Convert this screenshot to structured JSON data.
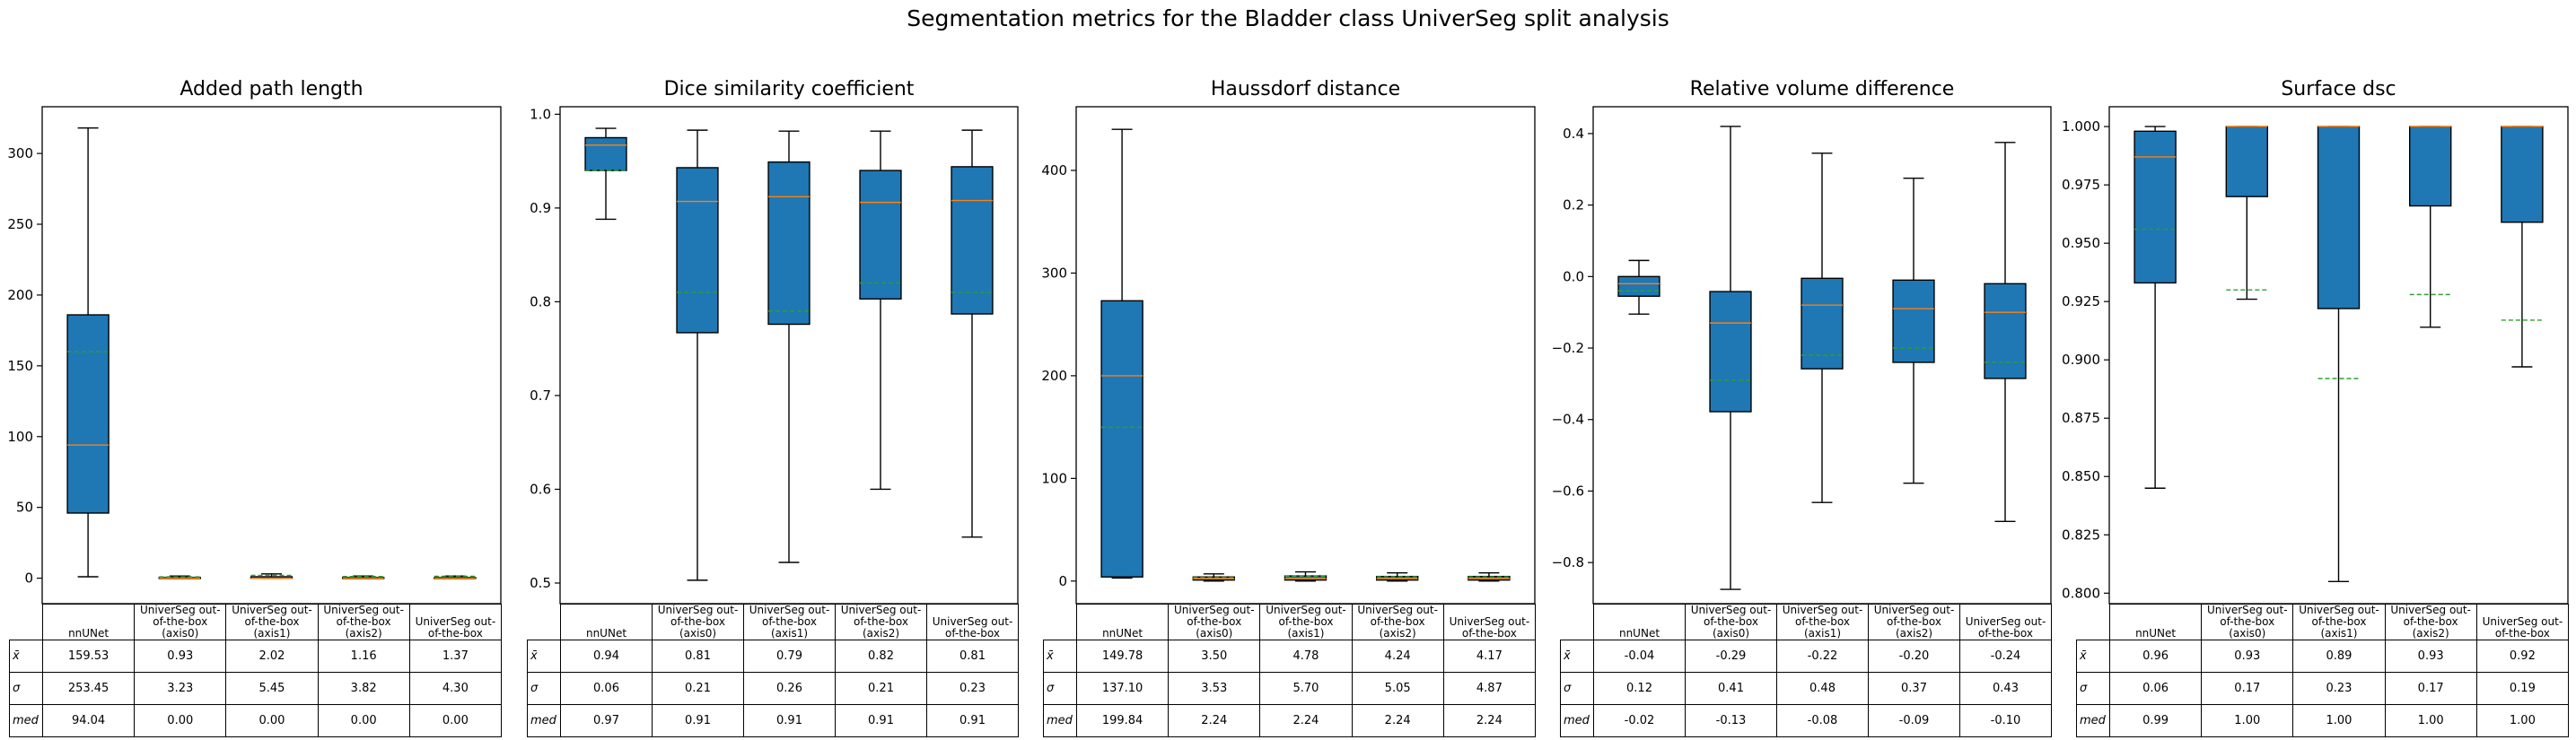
{
  "title": "Segmentation metrics for the Bladder class UniverSeg split analysis",
  "table_row_labels": [
    "x̄",
    "σ",
    "med"
  ],
  "colors": {
    "box": "#1f77b4",
    "median": "#ff7f0e",
    "mean": "#2ca02c",
    "edge": "#000000"
  },
  "chart_data": [
    {
      "type": "box",
      "title": "Added path length",
      "categories": [
        "nnUNet",
        "UniverSeg out-of-the-box (axis0)",
        "UniverSeg out-of-the-box (axis1)",
        "UniverSeg out-of-the-box (axis2)",
        "UniverSeg out-of-the-box"
      ],
      "ylim": [
        -18,
        333
      ],
      "yticks": [
        0,
        50,
        100,
        150,
        200,
        250,
        300
      ],
      "ytick_labels": [
        "0",
        "50",
        "100",
        "150",
        "200",
        "250",
        "300"
      ],
      "boxes": [
        {
          "whislo": 1,
          "q1": 46,
          "med": 94,
          "q3": 186,
          "whishi": 318,
          "mean": 160
        },
        {
          "whislo": 0,
          "q1": 0,
          "med": 0,
          "q3": 0.5,
          "whishi": 1.5,
          "mean": 0.93
        },
        {
          "whislo": 0,
          "q1": 0,
          "med": 0,
          "q3": 1,
          "whishi": 3,
          "mean": 2.02
        },
        {
          "whislo": 0,
          "q1": 0,
          "med": 0,
          "q3": 0.5,
          "whishi": 1.5,
          "mean": 1.16
        },
        {
          "whislo": 0,
          "q1": 0,
          "med": 0,
          "q3": 0.5,
          "whishi": 1.5,
          "mean": 1.37
        }
      ],
      "table": {
        "columns": [
          "nnUNet",
          "UniverSeg out-\nof-the-box\n(axis0)",
          "UniverSeg out-\nof-the-box\n(axis1)",
          "UniverSeg out-\nof-the-box\n(axis2)",
          "UniverSeg out-\nof-the-box"
        ],
        "rows": [
          [
            "159.53",
            "0.93",
            "2.02",
            "1.16",
            "1.37"
          ],
          [
            "253.45",
            "3.23",
            "5.45",
            "3.82",
            "4.30"
          ],
          [
            "94.04",
            "0.00",
            "0.00",
            "0.00",
            "0.00"
          ]
        ]
      }
    },
    {
      "type": "box",
      "title": "Dice similarity coefficient",
      "categories": [
        "nnUNet",
        "UniverSeg out-of-the-box (axis0)",
        "UniverSeg out-of-the-box (axis1)",
        "UniverSeg out-of-the-box (axis2)",
        "UniverSeg out-of-the-box"
      ],
      "ylim": [
        0.478,
        1.008
      ],
      "yticks": [
        0.5,
        0.6,
        0.7,
        0.8,
        0.9,
        1.0
      ],
      "ytick_labels": [
        "0.5",
        "0.6",
        "0.7",
        "0.8",
        "0.9",
        "1.0"
      ],
      "boxes": [
        {
          "whislo": 0.888,
          "q1": 0.94,
          "med": 0.967,
          "q3": 0.975,
          "whishi": 0.985,
          "mean": 0.94
        },
        {
          "whislo": 0.503,
          "q1": 0.767,
          "med": 0.907,
          "q3": 0.943,
          "whishi": 0.983,
          "mean": 0.81
        },
        {
          "whislo": 0.522,
          "q1": 0.776,
          "med": 0.912,
          "q3": 0.949,
          "whishi": 0.982,
          "mean": 0.79
        },
        {
          "whislo": 0.6,
          "q1": 0.803,
          "med": 0.906,
          "q3": 0.94,
          "whishi": 0.982,
          "mean": 0.82
        },
        {
          "whislo": 0.549,
          "q1": 0.787,
          "med": 0.908,
          "q3": 0.944,
          "whishi": 0.983,
          "mean": 0.81
        }
      ],
      "table": {
        "columns": [
          "nnUNet",
          "UniverSeg out-\nof-the-box\n(axis0)",
          "UniverSeg out-\nof-the-box\n(axis1)",
          "UniverSeg out-\nof-the-box\n(axis2)",
          "UniverSeg out-\nof-the-box"
        ],
        "rows": [
          [
            "0.94",
            "0.81",
            "0.79",
            "0.82",
            "0.81"
          ],
          [
            "0.06",
            "0.21",
            "0.26",
            "0.21",
            "0.23"
          ],
          [
            "0.97",
            "0.91",
            "0.91",
            "0.91",
            "0.91"
          ]
        ]
      }
    },
    {
      "type": "box",
      "title": "Haussdorf distance",
      "categories": [
        "nnUNet",
        "UniverSeg out-of-the-box (axis0)",
        "UniverSeg out-of-the-box (axis1)",
        "UniverSeg out-of-the-box (axis2)",
        "UniverSeg out-of-the-box"
      ],
      "ylim": [
        -22,
        462
      ],
      "yticks": [
        0,
        100,
        200,
        300,
        400
      ],
      "ytick_labels": [
        "0",
        "100",
        "200",
        "300",
        "400"
      ],
      "boxes": [
        {
          "whislo": 3,
          "q1": 4,
          "med": 200,
          "q3": 273,
          "whishi": 440,
          "mean": 149.78
        },
        {
          "whislo": 0,
          "q1": 1,
          "med": 2.24,
          "q3": 4,
          "whishi": 7,
          "mean": 3.5
        },
        {
          "whislo": 0,
          "q1": 1,
          "med": 2.24,
          "q3": 5,
          "whishi": 9,
          "mean": 4.78
        },
        {
          "whislo": 0,
          "q1": 1,
          "med": 2.24,
          "q3": 4.5,
          "whishi": 8,
          "mean": 4.24
        },
        {
          "whislo": 0,
          "q1": 1,
          "med": 2.24,
          "q3": 4.5,
          "whishi": 8,
          "mean": 4.17
        }
      ],
      "table": {
        "columns": [
          "nnUNet",
          "UniverSeg out-\nof-the-box\n(axis0)",
          "UniverSeg out-\nof-the-box\n(axis1)",
          "UniverSeg out-\nof-the-box\n(axis2)",
          "UniverSeg out-\nof-the-box"
        ],
        "rows": [
          [
            "149.78",
            "3.50",
            "4.78",
            "4.24",
            "4.17"
          ],
          [
            "137.10",
            "3.53",
            "5.70",
            "5.05",
            "4.87"
          ],
          [
            "199.84",
            "2.24",
            "2.24",
            "2.24",
            "2.24"
          ]
        ]
      }
    },
    {
      "type": "box",
      "title": "Relative volume difference",
      "categories": [
        "nnUNet",
        "UniverSeg out-of-the-box (axis0)",
        "UniverSeg out-of-the-box (axis1)",
        "UniverSeg out-of-the-box (axis2)",
        "UniverSeg out-of-the-box"
      ],
      "ylim": [
        -0.915,
        0.475
      ],
      "yticks": [
        -0.8,
        -0.6,
        -0.4,
        -0.2,
        0.0,
        0.2,
        0.4
      ],
      "ytick_labels": [
        "−0.8",
        "−0.6",
        "−0.4",
        "−0.2",
        "0.0",
        "0.2",
        "0.4"
      ],
      "boxes": [
        {
          "whislo": -0.105,
          "q1": -0.055,
          "med": -0.02,
          "q3": 0.0,
          "whishi": 0.045,
          "mean": -0.04
        },
        {
          "whislo": -0.875,
          "q1": -0.378,
          "med": -0.13,
          "q3": -0.042,
          "whishi": 0.42,
          "mean": -0.29
        },
        {
          "whislo": -0.632,
          "q1": -0.258,
          "med": -0.08,
          "q3": -0.005,
          "whishi": 0.345,
          "mean": -0.22
        },
        {
          "whislo": -0.578,
          "q1": -0.24,
          "med": -0.09,
          "q3": -0.01,
          "whishi": 0.275,
          "mean": -0.2
        },
        {
          "whislo": -0.685,
          "q1": -0.285,
          "med": -0.1,
          "q3": -0.02,
          "whishi": 0.375,
          "mean": -0.24
        }
      ],
      "table": {
        "columns": [
          "nnUNet",
          "UniverSeg out-\nof-the-box\n(axis0)",
          "UniverSeg out-\nof-the-box\n(axis1)",
          "UniverSeg out-\nof-the-box\n(axis2)",
          "UniverSeg out-\nof-the-box"
        ],
        "rows": [
          [
            "-0.04",
            "-0.29",
            "-0.22",
            "-0.20",
            "-0.24"
          ],
          [
            "0.12",
            "0.41",
            "0.48",
            "0.37",
            "0.43"
          ],
          [
            "-0.02",
            "-0.13",
            "-0.08",
            "-0.09",
            "-0.10"
          ]
        ]
      }
    },
    {
      "type": "box",
      "title": "Surface dsc",
      "categories": [
        "nnUNet",
        "UniverSeg out-of-the-box (axis0)",
        "UniverSeg out-of-the-box (axis1)",
        "UniverSeg out-of-the-box (axis2)",
        "UniverSeg out-of-the-box"
      ],
      "ylim": [
        0.7955,
        1.0085
      ],
      "yticks": [
        0.8,
        0.825,
        0.85,
        0.875,
        0.9,
        0.925,
        0.95,
        0.975,
        1.0
      ],
      "ytick_labels": [
        "0.800",
        "0.825",
        "0.850",
        "0.875",
        "0.900",
        "0.925",
        "0.950",
        "0.975",
        "1.000"
      ],
      "boxes": [
        {
          "whislo": 0.845,
          "q1": 0.933,
          "med": 0.987,
          "q3": 0.998,
          "whishi": 1.0,
          "mean": 0.956
        },
        {
          "whislo": 0.926,
          "q1": 0.97,
          "med": 1.0,
          "q3": 1.0,
          "whishi": 1.0,
          "mean": 0.93
        },
        {
          "whislo": 0.805,
          "q1": 0.922,
          "med": 1.0,
          "q3": 1.0,
          "whishi": 1.0,
          "mean": 0.892
        },
        {
          "whislo": 0.914,
          "q1": 0.966,
          "med": 1.0,
          "q3": 1.0,
          "whishi": 1.0,
          "mean": 0.928
        },
        {
          "whislo": 0.897,
          "q1": 0.959,
          "med": 1.0,
          "q3": 1.0,
          "whishi": 1.0,
          "mean": 0.917
        }
      ],
      "table": {
        "columns": [
          "nnUNet",
          "UniverSeg out-\nof-the-box\n(axis0)",
          "UniverSeg out-\nof-the-box\n(axis1)",
          "UniverSeg out-\nof-the-box\n(axis2)",
          "UniverSeg out-\nof-the-box"
        ],
        "rows": [
          [
            "0.96",
            "0.93",
            "0.89",
            "0.93",
            "0.92"
          ],
          [
            "0.06",
            "0.17",
            "0.23",
            "0.17",
            "0.19"
          ],
          [
            "0.99",
            "1.00",
            "1.00",
            "1.00",
            "1.00"
          ]
        ]
      }
    }
  ]
}
